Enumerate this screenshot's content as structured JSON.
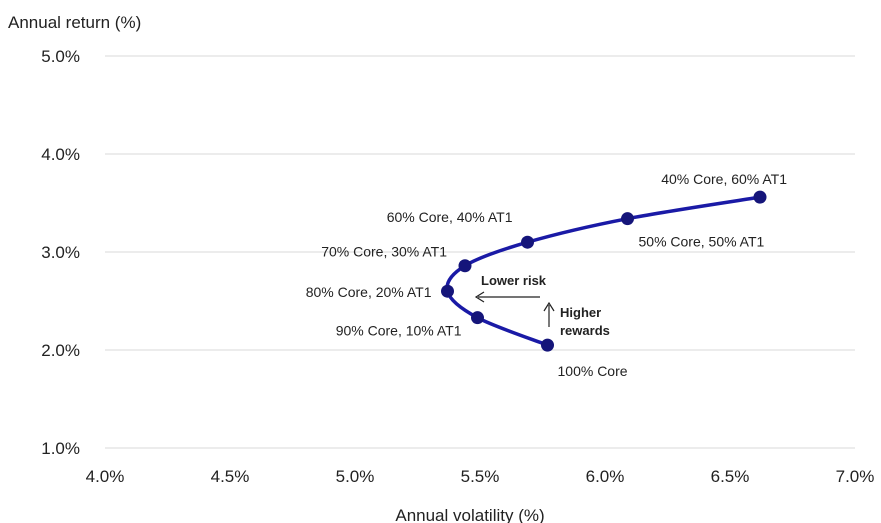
{
  "chart_data": {
    "type": "line",
    "ylabel": "Annual return (%)",
    "xlabel": "Annual volatility (%)",
    "xlim": [
      4.0,
      7.0
    ],
    "ylim": [
      1.0,
      5.0
    ],
    "x_ticks": [
      4.0,
      4.5,
      5.0,
      5.5,
      6.0,
      6.5,
      7.0
    ],
    "x_tick_labels": [
      "4.0%",
      "4.5%",
      "5.0%",
      "5.5%",
      "6.0%",
      "6.5%",
      "7.0%"
    ],
    "y_ticks": [
      1.0,
      2.0,
      3.0,
      4.0,
      5.0
    ],
    "y_tick_labels": [
      "1.0%",
      "2.0%",
      "3.0%",
      "4.0%",
      "5.0%"
    ],
    "grid": "horizontal",
    "series": [
      {
        "color": "#1a1aa6",
        "points": [
          {
            "label": "100% Core",
            "x": 5.77,
            "y": 2.05
          },
          {
            "label": "90% Core, 10% AT1",
            "x": 5.49,
            "y": 2.33
          },
          {
            "label": "80% Core, 20% AT1",
            "x": 5.37,
            "y": 2.6
          },
          {
            "label": "70% Core, 30% AT1",
            "x": 5.44,
            "y": 2.86
          },
          {
            "label": "60% Core, 40% AT1",
            "x": 5.69,
            "y": 3.1
          },
          {
            "label": "50% Core, 50% AT1",
            "x": 6.09,
            "y": 3.34
          },
          {
            "label": "40% Core, 60% AT1",
            "x": 6.62,
            "y": 3.56
          }
        ]
      }
    ],
    "annotations": {
      "lower_risk": "Lower risk",
      "higher_rewards_line1": "Higher",
      "higher_rewards_line2": "rewards"
    }
  },
  "colors": {
    "series": "#1a1aa6",
    "marker": "#15157a",
    "grid": "#d9d9d9",
    "text": "#222222"
  }
}
